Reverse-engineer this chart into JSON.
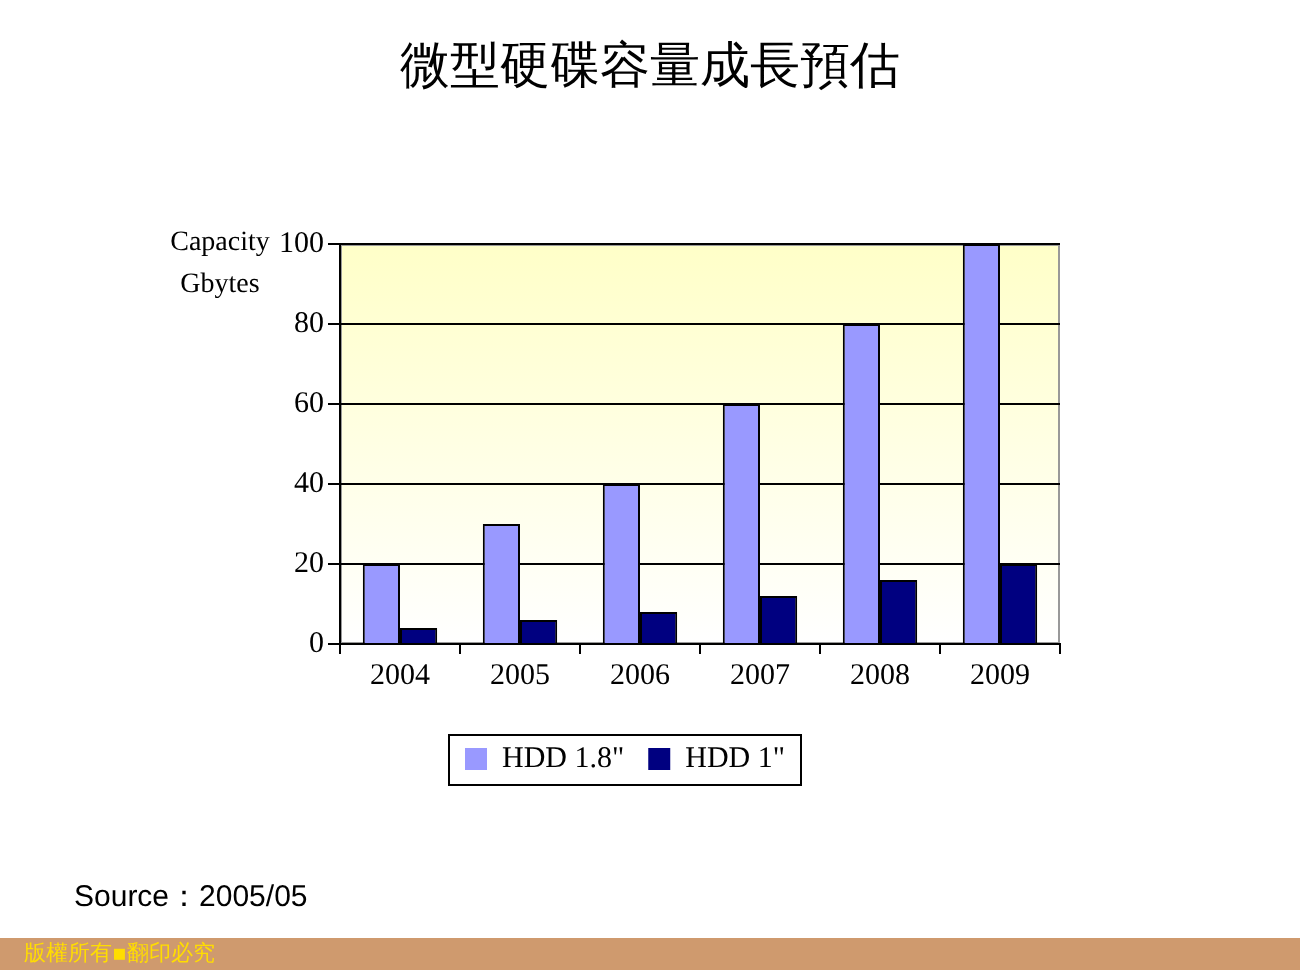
{
  "chart_data": {
    "type": "bar",
    "title": "微型硬碟容量成長預估",
    "ylabel": "Capacity Gbytes",
    "categories": [
      "2004",
      "2005",
      "2006",
      "2007",
      "2008",
      "2009"
    ],
    "series": [
      {
        "name": "HDD 1.8\"",
        "color": "#9999ff",
        "values": [
          20,
          30,
          40,
          60,
          80,
          100
        ]
      },
      {
        "name": "HDD 1\"",
        "color": "#000080",
        "values": [
          4,
          6,
          8,
          12,
          16,
          20
        ]
      }
    ],
    "ylim": [
      0,
      100
    ],
    "yticks": [
      0,
      20,
      40,
      60,
      80,
      100
    ],
    "grid": "y",
    "legend": "bottom",
    "annotations": [
      "Source：2005/05",
      "版權所有▪翻印必究"
    ]
  }
}
